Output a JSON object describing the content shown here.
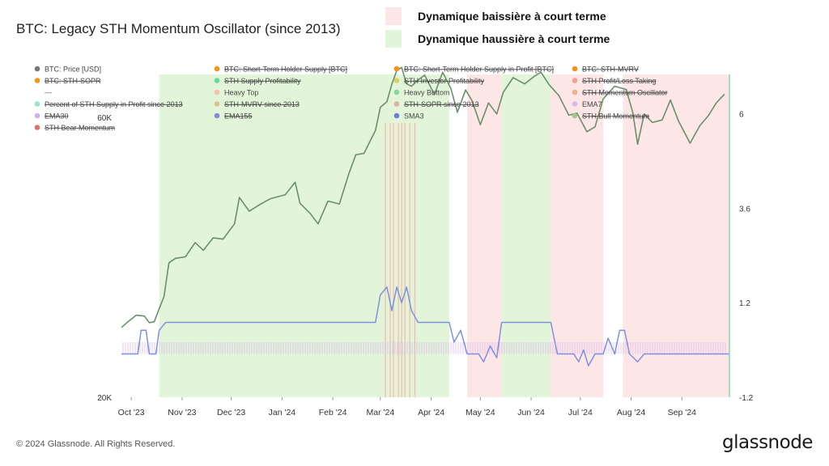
{
  "title": "BTC: Legacy STH Momentum Oscillator (since 2013)",
  "key": [
    {
      "label": "Dynamique baissière à court terme",
      "color": "#fde6e6"
    },
    {
      "label": "Dynamique haussière à court terme",
      "color": "#e3f5d9"
    }
  ],
  "footer": "© 2024 Glassnode. All Rights Reserved.",
  "logo": "glassnode",
  "chart_data": {
    "type": "line",
    "title": "BTC: Legacy STH Momentum Oscillator (since 2013)",
    "x_ticks": [
      "Oct '23",
      "Nov '23",
      "Dec '23",
      "Jan '24",
      "Feb '24",
      "Mar '24",
      "Apr '24",
      "May '24",
      "Jun '24",
      "Jul '24",
      "Aug '24",
      "Sep '24"
    ],
    "x_range": [
      "2023-09-25",
      "2024-09-30"
    ],
    "y_left": {
      "scale": "log",
      "range": [
        20000,
        71000
      ],
      "ticks": [
        "60K",
        "20K"
      ]
    },
    "y_right": {
      "scale": "linear",
      "range": [
        -1.2,
        7.0
      ],
      "ticks": [
        "6",
        "3.6",
        "1.2",
        "-1.2"
      ]
    },
    "grid": false,
    "legend_placement": "top",
    "legend": [
      {
        "label": "BTC: Price [USD]",
        "color": "#777777",
        "struck": false
      },
      {
        "label": "BTC: Short-Term Holder Supply [BTC]",
        "color": "#f7931a",
        "struck": true
      },
      {
        "label": "BTC: Short-Term Holder Supply in Profit [BTC]",
        "color": "#f7931a",
        "struck": true
      },
      {
        "label": "BTC: STH-MVRV",
        "color": "#f7931a",
        "struck": true
      },
      {
        "label": "BTC: STH-SOPR",
        "color": "#f7931a",
        "struck": true
      },
      {
        "label": "STH Supply Profitability",
        "color": "#66d9a0",
        "struck": true
      },
      {
        "label": "STH Investor Profitability",
        "color": "#e0d060",
        "struck": true
      },
      {
        "label": "STH Profit/Loss Taking",
        "color": "#f0a090",
        "struck": true
      },
      {
        "label": "---",
        "color": "",
        "struck": false
      },
      {
        "label": "Heavy Top",
        "color": "#f3c1b0",
        "struck": false
      },
      {
        "label": "Heavy Bottom",
        "color": "#7fdc9a",
        "struck": false
      },
      {
        "label": "STH Momentum Oscillator",
        "color": "#f0b090",
        "struck": true
      },
      {
        "label": "Percent of STH Supply in Profit since 2013",
        "color": "#a0e0d0",
        "struck": true
      },
      {
        "label": "STH-MVRV since 2013",
        "color": "#e0c090",
        "struck": true
      },
      {
        "label": "STH-SOPR since 2013",
        "color": "#e0b0a0",
        "struck": true
      },
      {
        "label": "EMA7",
        "color": "#d8b8f0",
        "struck": false
      },
      {
        "label": "EMA30",
        "color": "#d0b0e8",
        "struck": true
      },
      {
        "label": "EMA155",
        "color": "#8a8ad8",
        "struck": true
      },
      {
        "label": "SMA3",
        "color": "#6a7fd8",
        "struck": false
      },
      {
        "label": "STH Bull Momentum",
        "color": "#a0c890",
        "struck": true
      },
      {
        "label": "STH Bear Momentum",
        "color": "#e07070",
        "struck": true
      }
    ],
    "regions": [
      {
        "kind": "bull",
        "start": "2023-10-18",
        "end": "2024-04-12"
      },
      {
        "kind": "bear",
        "start": "2024-04-23",
        "end": "2024-05-14"
      },
      {
        "kind": "bull",
        "start": "2024-05-14",
        "end": "2024-06-13"
      },
      {
        "kind": "bear",
        "start": "2024-06-13",
        "end": "2024-07-15"
      },
      {
        "kind": "bear",
        "start": "2024-07-27",
        "end": "2024-09-30"
      }
    ],
    "heavy_top_lines": [
      "2024-03-04",
      "2024-03-07",
      "2024-03-09",
      "2024-03-12",
      "2024-03-14",
      "2024-03-16",
      "2024-03-19",
      "2024-03-22"
    ],
    "series": [
      {
        "name": "BTC: Price [USD]",
        "axis": "left",
        "color": "#6b8f6b",
        "points": [
          [
            "2023-09-25",
            26300
          ],
          [
            "2023-09-29",
            26900
          ],
          [
            "2023-10-04",
            27600
          ],
          [
            "2023-10-09",
            27500
          ],
          [
            "2023-10-12",
            26800
          ],
          [
            "2023-10-15",
            26900
          ],
          [
            "2023-10-18",
            28300
          ],
          [
            "2023-10-21",
            29700
          ],
          [
            "2023-10-24",
            33900
          ],
          [
            "2023-10-28",
            34500
          ],
          [
            "2023-11-03",
            34700
          ],
          [
            "2023-11-09",
            36700
          ],
          [
            "2023-11-14",
            35600
          ],
          [
            "2023-11-20",
            37400
          ],
          [
            "2023-11-26",
            37200
          ],
          [
            "2023-12-03",
            39500
          ],
          [
            "2023-12-06",
            43800
          ],
          [
            "2023-12-12",
            41500
          ],
          [
            "2023-12-19",
            42700
          ],
          [
            "2023-12-25",
            43600
          ],
          [
            "2024-01-03",
            44300
          ],
          [
            "2024-01-09",
            46500
          ],
          [
            "2024-01-12",
            42800
          ],
          [
            "2024-01-18",
            41200
          ],
          [
            "2024-01-23",
            39500
          ],
          [
            "2024-01-29",
            43200
          ],
          [
            "2024-02-05",
            42700
          ],
          [
            "2024-02-11",
            48300
          ],
          [
            "2024-02-15",
            51800
          ],
          [
            "2024-02-20",
            52100
          ],
          [
            "2024-02-27",
            57000
          ],
          [
            "2024-03-01",
            62400
          ],
          [
            "2024-03-05",
            63800
          ],
          [
            "2024-03-08",
            68300
          ],
          [
            "2024-03-11",
            72100
          ],
          [
            "2024-03-14",
            73000
          ],
          [
            "2024-03-17",
            68400
          ],
          [
            "2024-03-20",
            67800
          ],
          [
            "2024-03-25",
            69800
          ],
          [
            "2024-03-28",
            70800
          ],
          [
            "2024-04-03",
            65600
          ],
          [
            "2024-04-08",
            71600
          ],
          [
            "2024-04-13",
            67200
          ],
          [
            "2024-04-17",
            61200
          ],
          [
            "2024-04-22",
            66800
          ],
          [
            "2024-04-26",
            64000
          ],
          [
            "2024-05-01",
            58300
          ],
          [
            "2024-05-06",
            63500
          ],
          [
            "2024-05-11",
            60800
          ],
          [
            "2024-05-15",
            66200
          ],
          [
            "2024-05-21",
            70100
          ],
          [
            "2024-05-28",
            68400
          ],
          [
            "2024-06-03",
            70500
          ],
          [
            "2024-06-07",
            71600
          ],
          [
            "2024-06-12",
            68200
          ],
          [
            "2024-06-18",
            65300
          ],
          [
            "2024-06-24",
            60500
          ],
          [
            "2024-06-29",
            61000
          ],
          [
            "2024-07-05",
            56700
          ],
          [
            "2024-07-10",
            57800
          ],
          [
            "2024-07-15",
            64500
          ],
          [
            "2024-07-22",
            67800
          ],
          [
            "2024-07-29",
            66900
          ],
          [
            "2024-08-02",
            61200
          ],
          [
            "2024-08-05",
            54000
          ],
          [
            "2024-08-09",
            60800
          ],
          [
            "2024-08-14",
            58800
          ],
          [
            "2024-08-20",
            59400
          ],
          [
            "2024-08-25",
            64200
          ],
          [
            "2024-08-30",
            59100
          ],
          [
            "2024-09-06",
            54200
          ],
          [
            "2024-09-12",
            58100
          ],
          [
            "2024-09-17",
            60300
          ],
          [
            "2024-09-22",
            63500
          ],
          [
            "2024-09-27",
            65700
          ]
        ]
      },
      {
        "name": "SMA3",
        "axis": "right",
        "color": "#8090e0",
        "points": [
          [
            "2023-09-25",
            -0.1
          ],
          [
            "2023-10-05",
            -0.1
          ],
          [
            "2023-10-07",
            0.5
          ],
          [
            "2023-10-10",
            0.5
          ],
          [
            "2023-10-12",
            -0.1
          ],
          [
            "2023-10-16",
            -0.1
          ],
          [
            "2023-10-18",
            0.5
          ],
          [
            "2023-10-22",
            0.7
          ],
          [
            "2024-02-27",
            0.7
          ],
          [
            "2024-03-01",
            1.4
          ],
          [
            "2024-03-05",
            1.6
          ],
          [
            "2024-03-08",
            1.0
          ],
          [
            "2024-03-11",
            1.6
          ],
          [
            "2024-03-14",
            1.2
          ],
          [
            "2024-03-17",
            1.6
          ],
          [
            "2024-03-20",
            1.0
          ],
          [
            "2024-03-24",
            0.7
          ],
          [
            "2024-04-12",
            0.7
          ],
          [
            "2024-04-15",
            0.2
          ],
          [
            "2024-04-19",
            0.5
          ],
          [
            "2024-04-23",
            -0.1
          ],
          [
            "2024-04-30",
            -0.1
          ],
          [
            "2024-05-03",
            -0.3
          ],
          [
            "2024-05-07",
            0.1
          ],
          [
            "2024-05-11",
            -0.2
          ],
          [
            "2024-05-14",
            0.7
          ],
          [
            "2024-06-13",
            0.7
          ],
          [
            "2024-06-17",
            -0.1
          ],
          [
            "2024-06-27",
            -0.1
          ],
          [
            "2024-06-30",
            -0.3
          ],
          [
            "2024-07-03",
            0.0
          ],
          [
            "2024-07-06",
            -0.4
          ],
          [
            "2024-07-10",
            -0.1
          ],
          [
            "2024-07-15",
            -0.1
          ],
          [
            "2024-07-18",
            0.3
          ],
          [
            "2024-07-22",
            -0.1
          ],
          [
            "2024-07-25",
            0.5
          ],
          [
            "2024-07-28",
            0.5
          ],
          [
            "2024-07-31",
            -0.1
          ],
          [
            "2024-08-05",
            -0.3
          ],
          [
            "2024-08-09",
            -0.1
          ],
          [
            "2024-09-30",
            -0.1
          ]
        ]
      }
    ],
    "ema7_band": {
      "color": "#d8b8f0",
      "top": 0.2,
      "base": -0.1
    }
  }
}
